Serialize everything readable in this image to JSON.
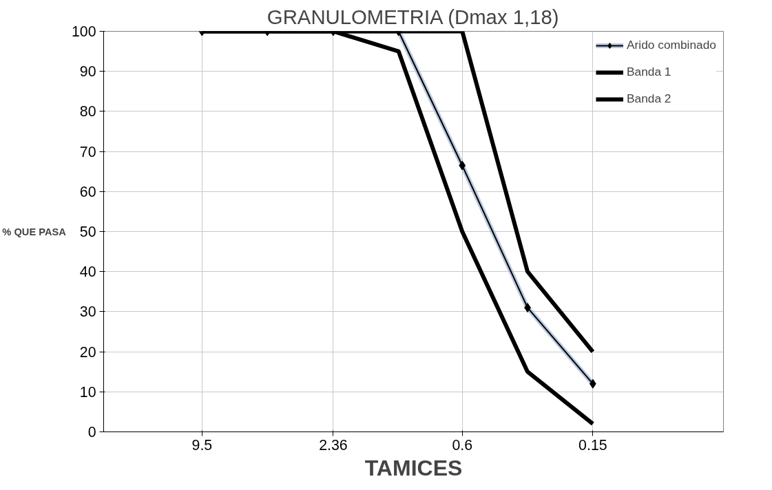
{
  "chart_data": {
    "type": "line",
    "title": "GRANULOMETRIA (Dmax 1,18)",
    "xlabel": "TAMICES",
    "ylabel": "% QUE PASA",
    "x": [
      9.5,
      4.75,
      2.36,
      1.18,
      0.6,
      0.3,
      0.15
    ],
    "log": "x",
    "xlim": [
      27,
      0.0375
    ],
    "xticks": [
      9.5,
      2.36,
      0.6,
      0.15
    ],
    "ylim": [
      0,
      100
    ],
    "yticks": [
      0,
      10,
      20,
      30,
      40,
      50,
      60,
      70,
      80,
      90,
      100
    ],
    "grid": true,
    "legend": "top right",
    "series": [
      {
        "name": "Arido combinado",
        "color": "#000000",
        "marker": "diamond",
        "values": [
          100,
          100,
          100,
          100,
          66.5,
          31,
          12
        ]
      },
      {
        "name": "Banda 1",
        "color": "#000000",
        "marker": "none",
        "values": [
          100,
          100,
          100,
          100,
          100,
          40,
          20
        ]
      },
      {
        "name": "Banda 2",
        "color": "#000000",
        "marker": "none",
        "values": [
          100,
          100,
          100,
          95,
          50,
          15,
          2
        ]
      }
    ]
  }
}
